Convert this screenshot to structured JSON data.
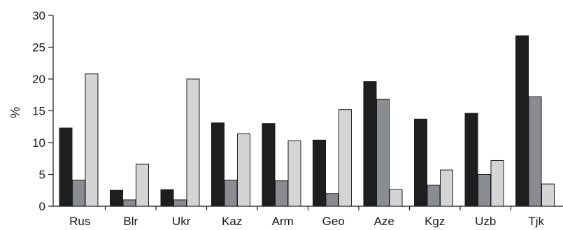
{
  "chart_data": {
    "type": "bar",
    "title": "",
    "xlabel": "",
    "ylabel": "%",
    "ylim": [
      0,
      30
    ],
    "yticks": [
      0,
      5,
      10,
      15,
      20,
      25,
      30
    ],
    "grid": false,
    "legend": "none",
    "categories": [
      "Rus",
      "Blr",
      "Ukr",
      "Kaz",
      "Arm",
      "Geo",
      "Aze",
      "Kgz",
      "Uzb",
      "Tjk"
    ],
    "series": [
      {
        "color": "#1e1e1e",
        "values": [
          12.3,
          2.5,
          2.6,
          13.1,
          13.0,
          10.4,
          19.6,
          13.7,
          14.6,
          26.8
        ]
      },
      {
        "color": "#8a8c91",
        "values": [
          4.1,
          1.0,
          1.0,
          4.1,
          4.0,
          2.0,
          16.8,
          3.3,
          5.0,
          17.2
        ]
      },
      {
        "color": "#d4d4d4",
        "values": [
          20.8,
          6.6,
          20.0,
          11.4,
          10.3,
          15.2,
          2.6,
          5.7,
          7.2,
          3.5
        ]
      }
    ]
  }
}
